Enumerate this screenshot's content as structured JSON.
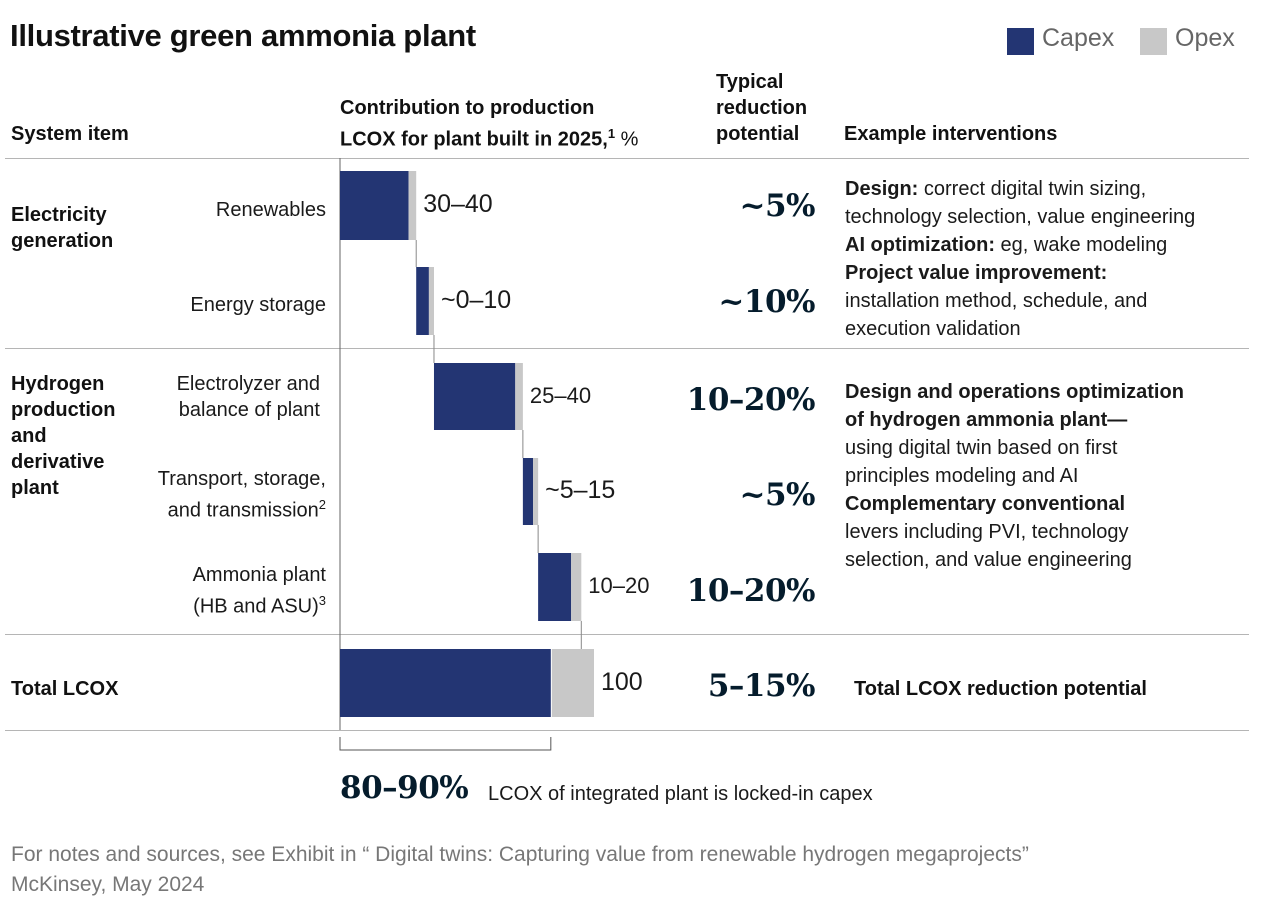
{
  "title": "Illustrative green ammonia plant",
  "legend": [
    {
      "name": "Capex",
      "color": "#233573"
    },
    {
      "name": "Opex",
      "color": "#c8c8c8"
    }
  ],
  "headers": {
    "system_item": "System item",
    "contribution_line1": "Contribution to production",
    "contribution_line2": "LCOX for plant built in 2025,",
    "contribution_sup": "1",
    "contribution_unit": " %",
    "reduction_line1": "Typical",
    "reduction_line2": "reduction",
    "reduction_line3": "potential",
    "interventions": "Example interventions"
  },
  "groups": {
    "electricity": [
      "Electricity",
      "generation"
    ],
    "hydrogen": [
      "Hydrogen",
      "production",
      "and",
      "derivative",
      "plant"
    ],
    "total": "Total LCOX"
  },
  "items": [
    {
      "label_lines": [
        "Renewables"
      ],
      "sup": ""
    },
    {
      "label_lines": [
        "Energy storage"
      ],
      "sup": ""
    },
    {
      "label_lines": [
        "Electrolyzer and",
        "balance of plant"
      ],
      "sup": ""
    },
    {
      "label_lines": [
        "Transport, storage,",
        "and transmission"
      ],
      "sup": "2"
    },
    {
      "label_lines": [
        "Ammonia plant",
        "(HB and ASU)"
      ],
      "sup": "3"
    }
  ],
  "reductions": [
    "~5%",
    "~10%",
    "10–20%",
    "~5%",
    "10–20%",
    "5–15%"
  ],
  "interventions": {
    "electricity": [
      {
        "bold": "Design:",
        "text": " correct digital twin sizing,"
      },
      {
        "bold": "",
        "text": "technology selection, value engineering"
      },
      {
        "bold": "AI optimization:",
        "text": " eg, wake modeling"
      },
      {
        "bold": "Project value improvement:",
        "text": ""
      },
      {
        "bold": "",
        "text": "installation method, schedule, and"
      },
      {
        "bold": "",
        "text": "execution validation"
      }
    ],
    "hydrogen": [
      {
        "bold": "Design and operations optimization",
        "text": ""
      },
      {
        "bold": "of hydrogen ammonia plant—",
        "text": ""
      },
      {
        "bold": "",
        "text": "using digital twin based on first"
      },
      {
        "bold": "",
        "text": "principles modeling and AI"
      },
      {
        "bold": "Complementary conventional",
        "text": ""
      },
      {
        "bold": "",
        "text": "levers including PVI, technology"
      },
      {
        "bold": "",
        "text": "selection, and value engineering"
      }
    ],
    "total": "Total LCOX reduction potential"
  },
  "chart_data": {
    "type": "bar",
    "subtype": "waterfall",
    "categories": [
      "Renewables",
      "Energy storage",
      "Electrolyzer and balance of plant",
      "Transport, storage, and transmission",
      "Ammonia plant (HB and ASU)",
      "Total LCOX"
    ],
    "value_labels": [
      "30–40",
      "~0–10",
      "25–40",
      "~5–15",
      "10–20",
      "100"
    ],
    "series": [
      {
        "name": "Capex",
        "values": [
          27,
          5,
          32,
          4,
          13,
          83
        ]
      },
      {
        "name": "Opex",
        "values": [
          3,
          2,
          3,
          2,
          4,
          17
        ]
      }
    ],
    "xlim": [
      0,
      100
    ]
  },
  "callout": {
    "value": "80–90%",
    "text": "LCOX of integrated plant is locked-in capex"
  },
  "footer": {
    "line1": "For notes and sources, see Exhibit in “ Digital twins: Capturing value from renewable hydrogen megaprojects”",
    "line2": "McKinsey, May 2024"
  }
}
